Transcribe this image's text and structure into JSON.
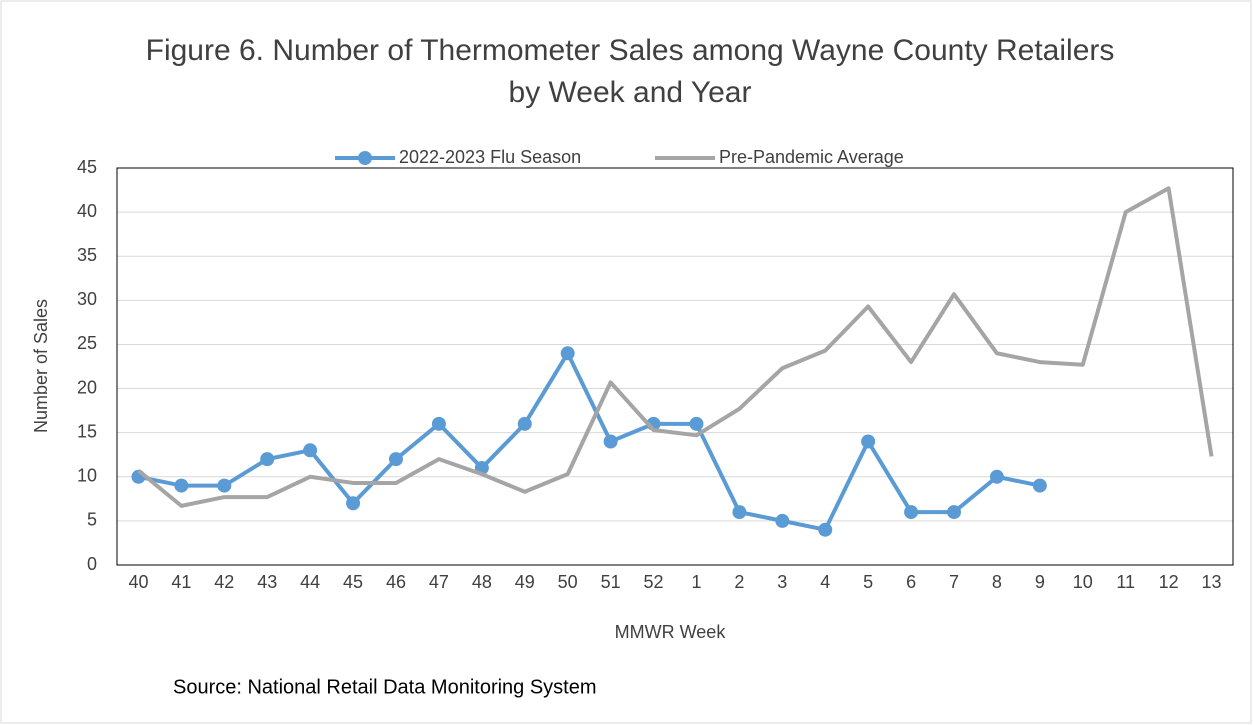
{
  "chart_data": {
    "type": "line",
    "title": "Figure 6. Number of Thermometer Sales among Wayne County Retailers by Week and Year",
    "x_label": "MMWR Week",
    "y_label": "Number of Sales",
    "annotation": "Source: National Retail Data Monitoring System",
    "categories": [
      "40",
      "41",
      "42",
      "43",
      "44",
      "45",
      "46",
      "47",
      "48",
      "49",
      "50",
      "51",
      "52",
      "1",
      "2",
      "3",
      "4",
      "5",
      "6",
      "7",
      "8",
      "9",
      "10",
      "11",
      "12",
      "13"
    ],
    "series": [
      {
        "name": "2022-2023 Flu Season",
        "color": "#5b9bd5",
        "marker": "circle",
        "values": [
          10,
          9,
          9,
          12,
          13,
          7,
          12,
          16,
          11,
          16,
          24,
          14,
          16,
          16,
          6,
          5,
          4,
          14,
          6,
          6,
          10,
          9,
          null,
          null,
          null,
          null
        ]
      },
      {
        "name": "Pre-Pandemic Average",
        "color": "#a5a5a5",
        "values": [
          10.7,
          6.7,
          7.7,
          7.7,
          10,
          9.3,
          9.3,
          12,
          10.3,
          8.3,
          10.3,
          20.7,
          15.3,
          14.7,
          17.7,
          22.3,
          24.3,
          29.3,
          23,
          30.7,
          24,
          23,
          22.7,
          40,
          42.7,
          12.3
        ]
      }
    ],
    "ylim": [
      0,
      45
    ],
    "yticks": [
      0,
      5,
      10,
      15,
      20,
      25,
      30,
      35,
      40,
      45
    ],
    "grid": true,
    "legend": "top"
  }
}
